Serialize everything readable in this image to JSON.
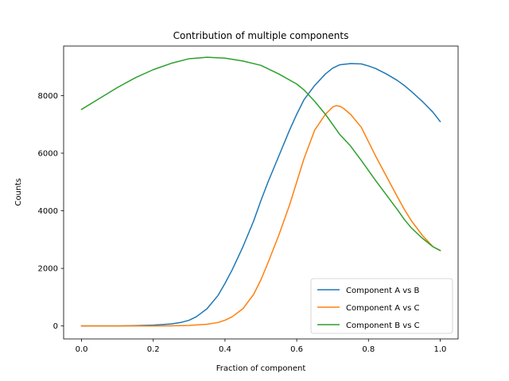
{
  "chart_data": {
    "type": "line",
    "title": "Contribution of multiple components",
    "xlabel": "Fraction of component",
    "ylabel": "Counts",
    "xlim": [
      -0.05,
      1.05
    ],
    "ylim": [
      -450,
      9720
    ],
    "xticks": [
      0.0,
      0.2,
      0.4,
      0.6,
      0.8,
      1.0
    ],
    "xtick_labels": [
      "0.0",
      "0.2",
      "0.4",
      "0.6",
      "0.8",
      "1.0"
    ],
    "yticks": [
      0,
      2000,
      4000,
      6000,
      8000
    ],
    "ytick_labels": [
      "0",
      "2000",
      "4000",
      "6000",
      "8000"
    ],
    "grid": false,
    "legend_position": "lower-right",
    "series": [
      {
        "name": "Component A vs B",
        "color": "#1f77b4",
        "x": [
          0.0,
          0.05,
          0.1,
          0.15,
          0.2,
          0.25,
          0.28,
          0.3,
          0.32,
          0.35,
          0.38,
          0.4,
          0.42,
          0.45,
          0.48,
          0.5,
          0.52,
          0.55,
          0.58,
          0.6,
          0.62,
          0.65,
          0.68,
          0.7,
          0.72,
          0.75,
          0.78,
          0.8,
          0.82,
          0.85,
          0.88,
          0.9,
          0.92,
          0.95,
          0.98,
          1.0
        ],
        "y": [
          0,
          0,
          0,
          10,
          30,
          70,
          130,
          200,
          320,
          600,
          1050,
          1480,
          1950,
          2750,
          3650,
          4350,
          5000,
          5900,
          6800,
          7350,
          7850,
          8350,
          8750,
          8950,
          9070,
          9110,
          9100,
          9030,
          8940,
          8750,
          8530,
          8350,
          8140,
          7800,
          7420,
          7100
        ]
      },
      {
        "name": "Component A vs C",
        "color": "#ff7f0e",
        "x": [
          0.0,
          0.1,
          0.2,
          0.25,
          0.3,
          0.35,
          0.38,
          0.4,
          0.42,
          0.45,
          0.48,
          0.5,
          0.52,
          0.55,
          0.58,
          0.6,
          0.62,
          0.65,
          0.68,
          0.7,
          0.71,
          0.72,
          0.73,
          0.75,
          0.78,
          0.8,
          0.82,
          0.85,
          0.88,
          0.9,
          0.92,
          0.95,
          0.98,
          1.0
        ],
        "y": [
          0,
          0,
          0,
          5,
          20,
          60,
          120,
          200,
          320,
          600,
          1100,
          1600,
          2200,
          3150,
          4200,
          5000,
          5800,
          6800,
          7350,
          7600,
          7650,
          7630,
          7560,
          7350,
          6900,
          6400,
          5900,
          5200,
          4500,
          4050,
          3650,
          3150,
          2750,
          2620
        ]
      },
      {
        "name": "Component B vs C",
        "color": "#2ca02c",
        "x": [
          0.0,
          0.05,
          0.1,
          0.15,
          0.2,
          0.25,
          0.3,
          0.35,
          0.4,
          0.45,
          0.5,
          0.55,
          0.6,
          0.62,
          0.65,
          0.68,
          0.7,
          0.72,
          0.75,
          0.78,
          0.8,
          0.82,
          0.85,
          0.88,
          0.9,
          0.92,
          0.95,
          0.98,
          1.0
        ],
        "y": [
          7520,
          7900,
          8280,
          8620,
          8900,
          9120,
          9280,
          9330,
          9300,
          9200,
          9050,
          8750,
          8400,
          8200,
          7800,
          7350,
          7000,
          6650,
          6250,
          5750,
          5400,
          5050,
          4550,
          4050,
          3700,
          3400,
          3050,
          2750,
          2620
        ]
      }
    ]
  }
}
